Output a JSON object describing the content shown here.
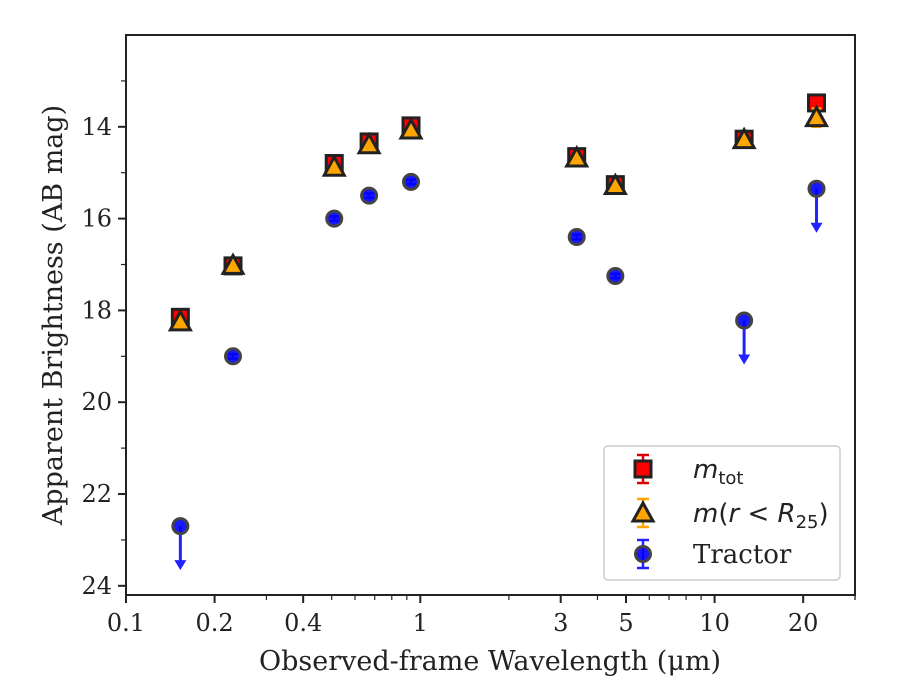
{
  "chart_data": {
    "type": "scatter",
    "xlabel": "Observed-frame Wavelength (μm)",
    "ylabel": "Apparent Brightness (AB mag)",
    "xscale": "log",
    "xlim": [
      0.1,
      30
    ],
    "ylim": [
      24.2,
      12.0
    ],
    "y_inverted": true,
    "x_ticks": [
      0.1,
      0.2,
      0.4,
      1,
      3,
      5,
      10,
      20
    ],
    "x_tick_labels": [
      "0.1",
      "0.2",
      "0.4",
      "1",
      "3",
      "5",
      "10",
      "20"
    ],
    "y_ticks": [
      14,
      16,
      18,
      20,
      22,
      24
    ],
    "y_tick_labels": [
      "14",
      "16",
      "18",
      "20",
      "22",
      "24"
    ],
    "legend_position": "lower-right",
    "series": [
      {
        "key": "mtot",
        "legend_base": "m",
        "legend_sub": "tot",
        "marker": "square",
        "color": "#ff0000",
        "edge_color": "#222222",
        "error_color": "#dd0000",
        "points": [
          {
            "x": 0.153,
            "y": 18.15,
            "err": 0.05
          },
          {
            "x": 0.231,
            "y": 17.03,
            "err": 0.05
          },
          {
            "x": 0.51,
            "y": 14.8,
            "err": 0.05
          },
          {
            "x": 0.67,
            "y": 14.33,
            "err": 0.05
          },
          {
            "x": 0.93,
            "y": 13.98,
            "err": 0.05
          },
          {
            "x": 3.4,
            "y": 14.65,
            "err": 0.05
          },
          {
            "x": 4.6,
            "y": 15.26,
            "err": 0.05
          },
          {
            "x": 12.6,
            "y": 14.27,
            "err": 0.05
          },
          {
            "x": 22.2,
            "y": 13.48,
            "err": 0.05
          }
        ]
      },
      {
        "key": "mr25",
        "legend_base": "m",
        "legend_sub": "25",
        "marker": "triangle",
        "color": "#ffa500",
        "edge_color": "#222222",
        "error_color": "#ffa500",
        "points": [
          {
            "x": 0.153,
            "y": 18.25,
            "err": 0.05
          },
          {
            "x": 0.231,
            "y": 17.02,
            "err": 0.05
          },
          {
            "x": 0.51,
            "y": 14.88,
            "err": 0.05
          },
          {
            "x": 0.67,
            "y": 14.39,
            "err": 0.05
          },
          {
            "x": 0.93,
            "y": 14.07,
            "err": 0.05
          },
          {
            "x": 3.4,
            "y": 14.68,
            "err": 0.05
          },
          {
            "x": 4.6,
            "y": 15.28,
            "err": 0.05
          },
          {
            "x": 12.6,
            "y": 14.28,
            "err": 0.05
          },
          {
            "x": 22.2,
            "y": 13.8,
            "err": 0.2
          }
        ]
      },
      {
        "key": "tractor",
        "name": "Tractor",
        "marker": "circle",
        "color": "#0000ff",
        "edge_color": "#444444",
        "error_color": "#2222ff",
        "points": [
          {
            "x": 0.153,
            "y": 22.7,
            "upper_limit": true
          },
          {
            "x": 0.231,
            "y": 19.0,
            "err": 0.05
          },
          {
            "x": 0.51,
            "y": 16.0,
            "err": 0.05
          },
          {
            "x": 0.67,
            "y": 15.5,
            "err": 0.05
          },
          {
            "x": 0.93,
            "y": 15.2,
            "err": 0.05
          },
          {
            "x": 3.4,
            "y": 16.4,
            "err": 0.05
          },
          {
            "x": 4.6,
            "y": 17.25,
            "err": 0.05
          },
          {
            "x": 12.6,
            "y": 18.22,
            "upper_limit": true
          },
          {
            "x": 22.2,
            "y": 15.35,
            "upper_limit": true
          }
        ]
      }
    ]
  }
}
